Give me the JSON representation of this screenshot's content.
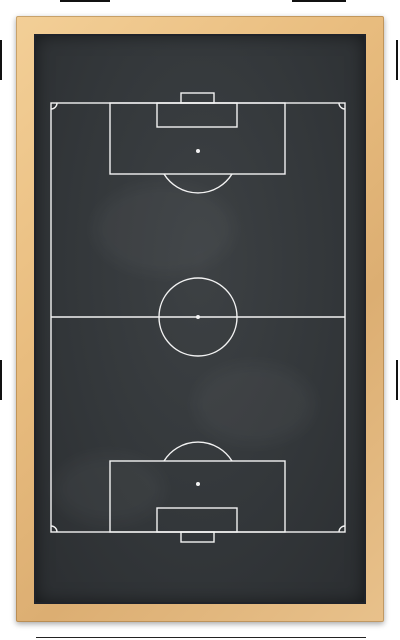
{
  "board": {
    "frame_color": "#e8c18b",
    "surface_color": "#33373a",
    "line_color": "#f2f2f2"
  },
  "pitch": {
    "orientation": "vertical",
    "markings": [
      "touchlines",
      "goal-lines",
      "halfway-line",
      "center-circle",
      "center-spot",
      "penalty-areas",
      "goal-areas",
      "penalty-spots",
      "penalty-arcs",
      "goals",
      "corner-arcs"
    ]
  }
}
